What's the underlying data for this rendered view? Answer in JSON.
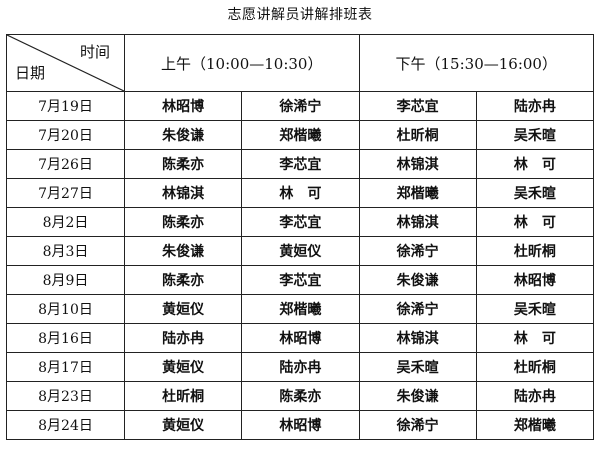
{
  "title": "志愿讲解员讲解排班表",
  "header": {
    "time_label": "时间",
    "date_label": "日期",
    "morning": "上午（10:00—10:30）",
    "afternoon": "下午（15:30—16:00）"
  },
  "rows": [
    {
      "date": "7月19日",
      "names": [
        "林昭博",
        "徐浠宁",
        "李芯宜",
        "陆亦冉"
      ]
    },
    {
      "date": "7月20日",
      "names": [
        "朱俊谦",
        "郑楷曦",
        "杜昕桐",
        "吴禾暄"
      ]
    },
    {
      "date": "7月26日",
      "names": [
        "陈柔亦",
        "李芯宜",
        "林锦淇",
        "林　可"
      ]
    },
    {
      "date": "7月27日",
      "names": [
        "林锦淇",
        "林　可",
        "郑楷曦",
        "吴禾暄"
      ]
    },
    {
      "date": "8月2日",
      "names": [
        "陈柔亦",
        "李芯宜",
        "林锦淇",
        "林　可"
      ]
    },
    {
      "date": "8月3日",
      "names": [
        "朱俊谦",
        "黄姮仪",
        "徐浠宁",
        "杜昕桐"
      ]
    },
    {
      "date": "8月9日",
      "names": [
        "陈柔亦",
        "李芯宜",
        "朱俊谦",
        "林昭博"
      ]
    },
    {
      "date": "8月10日",
      "names": [
        "黄姮仪",
        "郑楷曦",
        "徐浠宁",
        "吴禾暄"
      ]
    },
    {
      "date": "8月16日",
      "names": [
        "陆亦冉",
        "林昭博",
        "林锦淇",
        "林　可"
      ]
    },
    {
      "date": "8月17日",
      "names": [
        "黄姮仪",
        "陆亦冉",
        "吴禾暄",
        "杜昕桐"
      ]
    },
    {
      "date": "8月23日",
      "names": [
        "杜昕桐",
        "陈柔亦",
        "朱俊谦",
        "陆亦冉"
      ]
    },
    {
      "date": "8月24日",
      "names": [
        "黄姮仪",
        "林昭博",
        "徐浠宁",
        "郑楷曦"
      ]
    }
  ]
}
